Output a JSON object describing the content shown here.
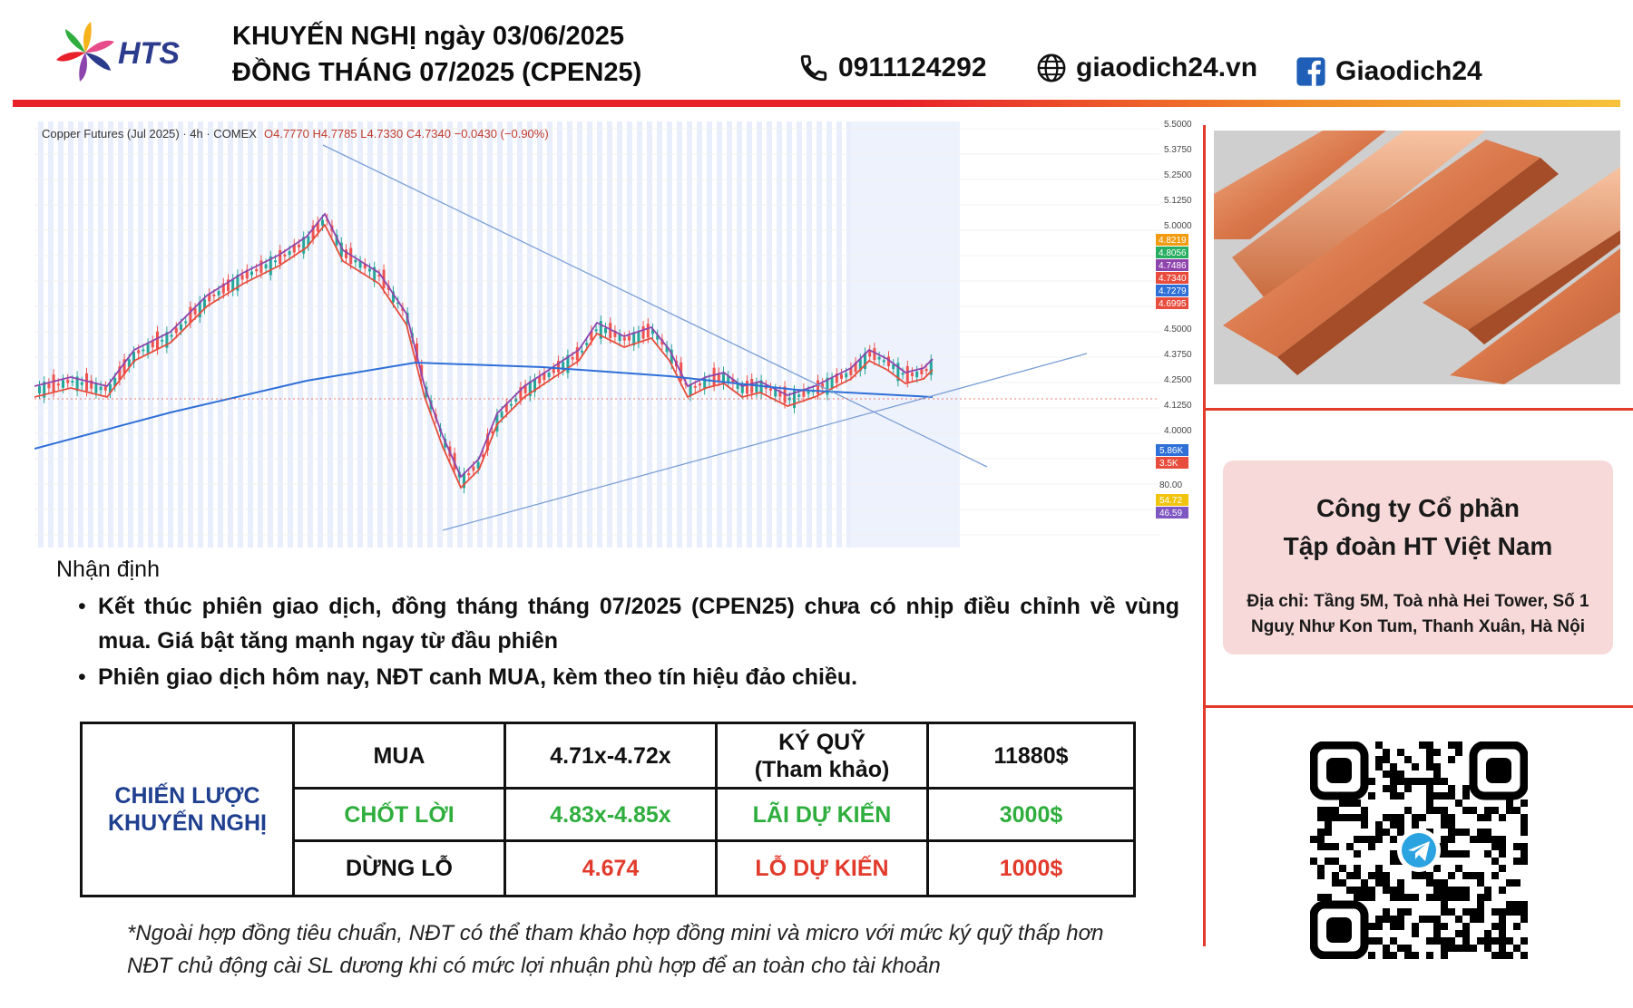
{
  "header": {
    "logo_text": "HTS",
    "title_line1": "KHUYẾN NGHỊ ngày 03/06/2025",
    "title_line2": "ĐỒNG THÁNG 07/2025 (CPEN25)",
    "phone": "0911124292",
    "website": "giaodich24.vn",
    "facebook": "Giaodich24"
  },
  "chart": {
    "symbol_line": "Copper Futures (Jul 2025) · 4h · COMEX",
    "ohlc": "O4.7770 H4.7785 L4.7330 C4.7340 −0.0430 (−0.90%)",
    "price_ticks": [
      "5.5000",
      "5.3750",
      "5.2500",
      "5.1250",
      "5.0000",
      "4.5000",
      "4.3750",
      "4.2500",
      "4.1250",
      "4.0000"
    ],
    "price_tags": [
      "4.8219",
      "4.8056",
      "4.7486",
      "4.7340",
      "4.7279",
      "4.6995"
    ],
    "price_tag_colors": [
      "#f39c12",
      "#27ae60",
      "#8e44ad",
      "#e74c3c",
      "#2e6fd8",
      "#e74c3c"
    ],
    "volume_tags": [
      "5.86K",
      "3.5K"
    ],
    "rsi_ticks": [
      "80.00"
    ],
    "rsi_tags": [
      "54.72",
      "46.59"
    ]
  },
  "analysis": {
    "title": "Nhận định",
    "bullets": [
      "Kết thúc phiên giao dịch, đồng tháng tháng 07/2025 (CPEN25) chưa có nhịp điều chỉnh về vùng mua. Giá bật tăng mạnh ngay từ đầu phiên",
      "Phiên giao dịch hôm nay, NĐT canh MUA, kèm theo tín hiệu đảo chiều."
    ]
  },
  "strategy": {
    "label_line1": "CHIẾN LƯỢC",
    "label_line2": "KHUYẾN NGHỊ",
    "buy_label": "MUA",
    "buy_value": "4.71x-4.72x",
    "margin_label_line1": "KÝ QUỸ",
    "margin_label_line2": "(Tham khảo)",
    "margin_value": "11880$",
    "tp_label": "CHỐT LỜI",
    "tp_value": "4.83x-4.85x",
    "profit_label": "LÃI DỰ KIẾN",
    "profit_value": "3000$",
    "sl_label": "DỪNG LỖ",
    "sl_value": "4.674",
    "loss_label": "LỖ DỰ KIẾN",
    "loss_value": "1000$"
  },
  "footnote": {
    "line1": "*Ngoài hợp đồng tiêu chuẩn, NĐT có thể tham khảo hợp đồng mini và micro với mức ký quỹ thấp hơn",
    "line2": "NĐT chủ động cài SL dương khi có mức lợi nhuận phù hợp để an toàn cho tài khoản"
  },
  "company": {
    "name_line1": "Công ty Cổ phần",
    "name_line2": "Tập đoàn HT Việt Nam",
    "address_line1": "Địa chỉ: Tầng 5M, Toà nhà Hei Tower, Số 1",
    "address_line2": "Nguỵ Như Kon Tum, Thanh Xuân, Hà Nội"
  },
  "colors": {
    "brand_red": "#e23b2c",
    "brand_blue": "#1f3f8f",
    "profit_green": "#2fae3e"
  },
  "icons": [
    "phone-icon",
    "globe-icon",
    "facebook-icon",
    "telegram-icon"
  ]
}
